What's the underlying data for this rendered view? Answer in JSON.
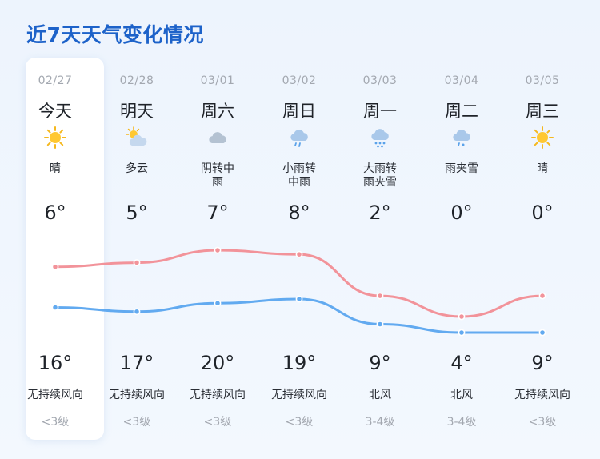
{
  "title": "近7天天气变化情况",
  "colors": {
    "title": "#1d62c9",
    "high_line": "#f2939a",
    "low_line": "#62aaf0"
  },
  "days": [
    {
      "date": "02/27",
      "weekday": "今天",
      "icon": "sun-icon",
      "condition": "晴",
      "high": "6°",
      "low": "16°",
      "wind": "无持续风向",
      "level": "<3级"
    },
    {
      "date": "02/28",
      "weekday": "明天",
      "icon": "partly-cloudy-icon",
      "condition": "多云",
      "high": "5°",
      "low": "17°",
      "wind": "无持续风向",
      "level": "<3级"
    },
    {
      "date": "03/01",
      "weekday": "周六",
      "icon": "overcast-icon",
      "condition": "阴转中雨",
      "high": "7°",
      "low": "20°",
      "wind": "无持续风向",
      "level": "<3级"
    },
    {
      "date": "03/02",
      "weekday": "周日",
      "icon": "rain-icon",
      "condition": "小雨转中雨",
      "high": "8°",
      "low": "19°",
      "wind": "无持续风向",
      "level": "<3级"
    },
    {
      "date": "03/03",
      "weekday": "周一",
      "icon": "rain-snow-icon",
      "condition": "大雨转雨夹雪",
      "high": "2°",
      "low": "9°",
      "wind": "北风",
      "level": "3-4级"
    },
    {
      "date": "03/04",
      "weekday": "周二",
      "icon": "sleet-icon",
      "condition": "雨夹雪",
      "high": "0°",
      "low": "4°",
      "wind": "北风",
      "level": "3-4级"
    },
    {
      "date": "03/05",
      "weekday": "周三",
      "icon": "sun-icon",
      "condition": "晴",
      "high": "0°",
      "low": "9°",
      "wind": "无持续风向",
      "level": "<3级"
    }
  ],
  "chart_data": {
    "type": "line",
    "categories": [
      "02/27",
      "02/28",
      "03/01",
      "03/02",
      "03/03",
      "03/04",
      "03/05"
    ],
    "series": [
      {
        "color": "#f2939a",
        "values": [
          16,
          17,
          20,
          19,
          9,
          4,
          9
        ]
      },
      {
        "color": "#62aaf0",
        "values": [
          6,
          5,
          7,
          8,
          2,
          0,
          0
        ]
      }
    ],
    "ylim": [
      0,
      20
    ],
    "grid": false
  }
}
